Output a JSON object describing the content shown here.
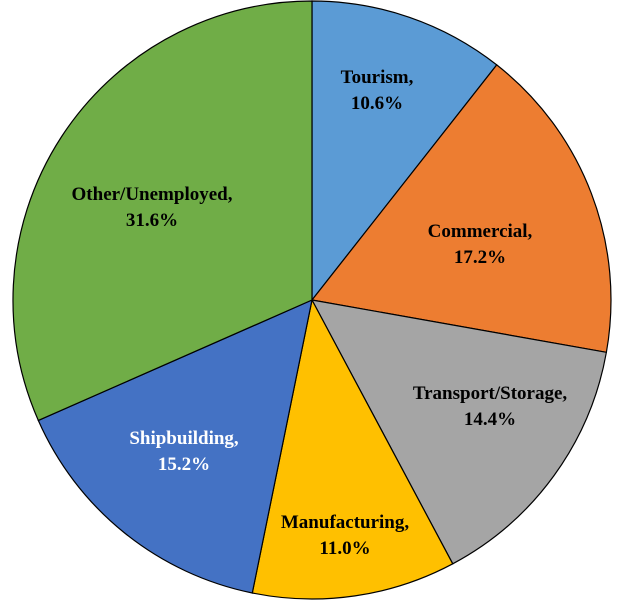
{
  "chart_data": {
    "type": "pie",
    "title": "",
    "slices": [
      {
        "label": "Tourism,",
        "value": 10.6,
        "value_label": "10.6%",
        "color": "#5b9bd5",
        "text_color": "#000000"
      },
      {
        "label": "Commercial,",
        "value": 17.2,
        "value_label": "17.2%",
        "color": "#ed7d31",
        "text_color": "#000000"
      },
      {
        "label": "Transport/Storage,",
        "value": 14.4,
        "value_label": "14.4%",
        "color": "#a5a5a5",
        "text_color": "#000000"
      },
      {
        "label": "Manufacturing,",
        "value": 11.0,
        "value_label": "11.0%",
        "color": "#ffc000",
        "text_color": "#000000"
      },
      {
        "label": "Shipbuilding,",
        "value": 15.2,
        "value_label": "15.2%",
        "color": "#4472c4",
        "text_color": "#ffffff"
      },
      {
        "label": "Other/Unemployed,",
        "value": 31.6,
        "value_label": "31.6%",
        "color": "#70ad47",
        "text_color": "#000000"
      }
    ],
    "start_angle": "12 o'clock",
    "direction": "clockwise",
    "legend": "none"
  }
}
